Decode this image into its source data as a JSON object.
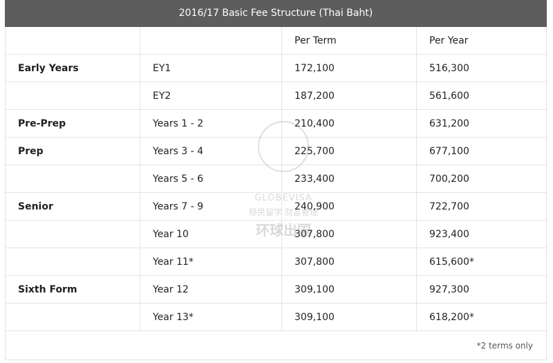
{
  "title": "2016/17 Basic Fee Structure (Thai Baht)",
  "headers": [
    "",
    "",
    "Per Term",
    "Per Year"
  ],
  "rows": [
    [
      "Early Years",
      "EY1",
      "172,100",
      "516,300"
    ],
    [
      "",
      "EY2",
      "187,200",
      "561,600"
    ],
    [
      "Pre-Prep",
      "Years 1 - 2",
      "210,400",
      "631,200"
    ],
    [
      "Prep",
      "Years 3 - 4",
      "225,700",
      "677,100"
    ],
    [
      "",
      "Years 5 - 6",
      "233,400",
      "700,200"
    ],
    [
      "Senior",
      "Years 7 - 9",
      "240,900",
      "722,700"
    ],
    [
      "",
      "Year 10",
      "307,800",
      "923,400"
    ],
    [
      "",
      "Year 11*",
      "307,800",
      "615,600*"
    ],
    [
      "Sixth Form",
      "Year 12",
      "309,100",
      "927,300"
    ],
    [
      "",
      "Year 13*",
      "309,100",
      "618,200*"
    ]
  ],
  "footnote": "*2 terms only",
  "watermark": {
    "brand": "GLOBEVISA",
    "tagline": "移民留学 财富管理",
    "chinese": "环球出国"
  }
}
